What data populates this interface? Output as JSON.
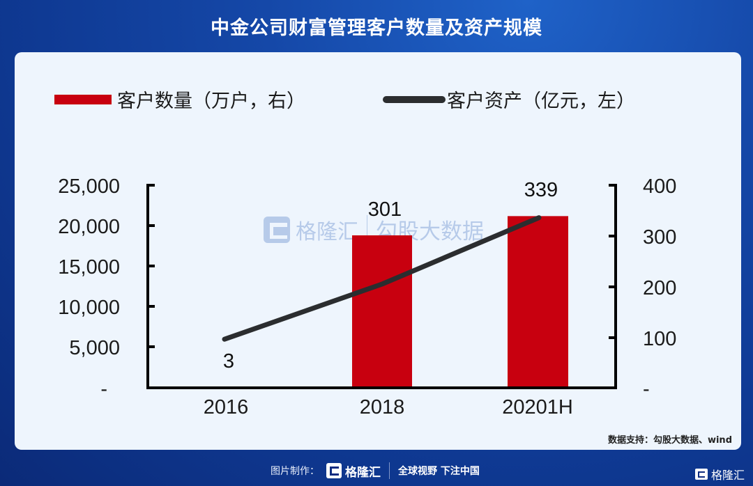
{
  "header": {
    "title": "中金公司财富管理客户数量及资产规模"
  },
  "legend": {
    "bar_label": "客户数量（万户，右）",
    "line_label": "客户资产（亿元，左）"
  },
  "colors": {
    "bar": "#c8000f",
    "line": "#2b2d2f",
    "background_top": "#1f62c8",
    "background_bottom": "#0b2a78",
    "card": "#eef5fd"
  },
  "axes": {
    "left_ticks": [
      "25,000",
      "20,000",
      "15,000",
      "10,000",
      "5,000",
      "-"
    ],
    "right_ticks": [
      "400",
      "300",
      "200",
      "100",
      "-"
    ],
    "x_ticks": [
      "2016",
      "2018",
      "20201H"
    ]
  },
  "data_labels": [
    "3",
    "301",
    "339"
  ],
  "watermark": {
    "brand": "格隆汇",
    "product": "勾股大数据"
  },
  "source": "数据支持：勾股大数据、wind",
  "footer": {
    "made_by_label": "图片制作：",
    "brand": "格隆汇",
    "slogan": "全球视野 下注中国"
  },
  "corner_brand": "格隆汇",
  "chart_data": {
    "type": "bar",
    "title": "中金公司财富管理客户数量及资产规模",
    "categories": [
      "2016",
      "2018",
      "20201H"
    ],
    "series": [
      {
        "name": "客户数量（万户，右）",
        "type": "bar",
        "axis": "right",
        "values": [
          3,
          301,
          339
        ],
        "color": "#c8000f"
      },
      {
        "name": "客户资产（亿元，左）",
        "type": "line",
        "axis": "left",
        "values": [
          6000,
          12800,
          21000
        ],
        "color": "#2b2d2f"
      }
    ],
    "xlabel": "",
    "ylabel_left": "客户资产（亿元）",
    "ylabel_right": "客户数量（万户）",
    "ylim_left": [
      0,
      25000
    ],
    "ylim_right": [
      0,
      400
    ],
    "left_ticks": [
      0,
      5000,
      10000,
      15000,
      20000,
      25000
    ],
    "right_ticks": [
      0,
      100,
      200,
      300,
      400
    ],
    "data_labels": [
      "3",
      "301",
      "339"
    ],
    "legend_position": "top",
    "grid": false,
    "source": "数据支持：勾股大数据、wind"
  }
}
